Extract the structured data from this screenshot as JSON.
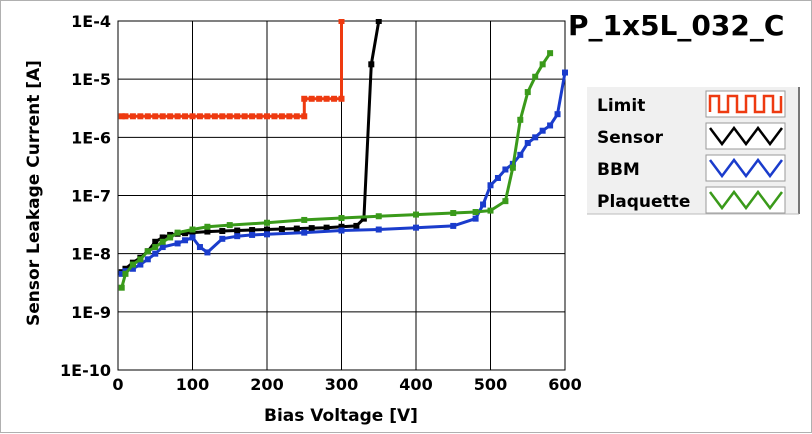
{
  "chart_data": {
    "type": "line",
    "title": "P_1x5L_032_C",
    "xlabel": "Bias Voltage [V]",
    "ylabel": "Sensor Leakage Current [A]",
    "xlim": [
      0,
      600
    ],
    "ylim": [
      1e-10,
      0.0001
    ],
    "yscale": "log",
    "grid": true,
    "legend_position": "right",
    "x_ticks": [
      "0",
      "100",
      "200",
      "300",
      "400",
      "500",
      "600"
    ],
    "y_ticks": [
      "1E-4",
      "1E-5",
      "1E-6",
      "1E-7",
      "1E-8",
      "1E-9",
      "1E-10"
    ],
    "series": [
      {
        "name": "Limit",
        "color": "#ee3a10",
        "x": [
          5,
          10,
          20,
          30,
          40,
          50,
          60,
          70,
          80,
          90,
          100,
          110,
          120,
          130,
          140,
          150,
          160,
          170,
          180,
          190,
          200,
          210,
          220,
          230,
          240,
          250,
          250,
          260,
          270,
          280,
          290,
          300,
          300
        ],
        "y": [
          2.3e-06,
          2.3e-06,
          2.3e-06,
          2.3e-06,
          2.3e-06,
          2.3e-06,
          2.3e-06,
          2.3e-06,
          2.3e-06,
          2.3e-06,
          2.3e-06,
          2.3e-06,
          2.3e-06,
          2.3e-06,
          2.3e-06,
          2.3e-06,
          2.3e-06,
          2.3e-06,
          2.3e-06,
          2.3e-06,
          2.3e-06,
          2.3e-06,
          2.3e-06,
          2.3e-06,
          2.3e-06,
          2.3e-06,
          4.6e-06,
          4.6e-06,
          4.6e-06,
          4.6e-06,
          4.6e-06,
          4.6e-06,
          0.0001
        ]
      },
      {
        "name": "Sensor",
        "color": "#000000",
        "x": [
          5,
          10,
          20,
          30,
          40,
          50,
          60,
          70,
          80,
          90,
          100,
          120,
          140,
          160,
          180,
          200,
          220,
          240,
          260,
          280,
          300,
          320,
          330,
          340,
          350
        ],
        "y": [
          4.8e-09,
          5.5e-09,
          7e-09,
          8.5e-09,
          1.1e-08,
          1.6e-08,
          1.9e-08,
          2.1e-08,
          2.2e-08,
          2.25e-08,
          2.3e-08,
          2.4e-08,
          2.45e-08,
          2.5e-08,
          2.55e-08,
          2.6e-08,
          2.65e-08,
          2.7e-08,
          2.75e-08,
          2.8e-08,
          2.9e-08,
          3e-08,
          4e-08,
          1.8e-05,
          0.0001
        ]
      },
      {
        "name": "BBM",
        "color": "#1a3ccc",
        "x": [
          5,
          10,
          20,
          30,
          40,
          50,
          60,
          80,
          90,
          100,
          110,
          120,
          140,
          160,
          180,
          200,
          250,
          300,
          350,
          400,
          450,
          480,
          490,
          500,
          510,
          520,
          530,
          540,
          550,
          560,
          570,
          580,
          590,
          600
        ],
        "y": [
          4.5e-09,
          5e-09,
          5.5e-09,
          6.5e-09,
          8e-09,
          1e-08,
          1.3e-08,
          1.5e-08,
          1.7e-08,
          1.9e-08,
          1.3e-08,
          1.05e-08,
          1.8e-08,
          2e-08,
          2.1e-08,
          2.15e-08,
          2.3e-08,
          2.5e-08,
          2.6e-08,
          2.8e-08,
          3e-08,
          4e-08,
          7e-08,
          1.5e-07,
          2e-07,
          2.8e-07,
          3.5e-07,
          5e-07,
          8e-07,
          1e-06,
          1.3e-06,
          1.6e-06,
          2.5e-06,
          1.3e-05
        ]
      },
      {
        "name": "Plaquette",
        "color": "#3a9a1a",
        "x": [
          5,
          10,
          20,
          30,
          40,
          50,
          60,
          70,
          80,
          100,
          120,
          150,
          200,
          250,
          300,
          350,
          400,
          450,
          480,
          500,
          520,
          530,
          540,
          550,
          560,
          570,
          580
        ],
        "y": [
          2.6e-09,
          4.5e-09,
          6.5e-09,
          8e-09,
          1.1e-08,
          1.3e-08,
          1.6e-08,
          1.9e-08,
          2.3e-08,
          2.6e-08,
          2.9e-08,
          3.1e-08,
          3.4e-08,
          3.8e-08,
          4.1e-08,
          4.4e-08,
          4.7e-08,
          5e-08,
          5.2e-08,
          5.5e-08,
          8e-08,
          3e-07,
          2e-06,
          6e-06,
          1.1e-05,
          1.8e-05,
          2.8e-05
        ]
      }
    ]
  },
  "icons": {
    "Limit": "square-wave-icon",
    "Sensor": "triangle-wave-icon",
    "BBM": "triangle-wave-icon",
    "Plaquette": "triangle-wave-icon"
  }
}
